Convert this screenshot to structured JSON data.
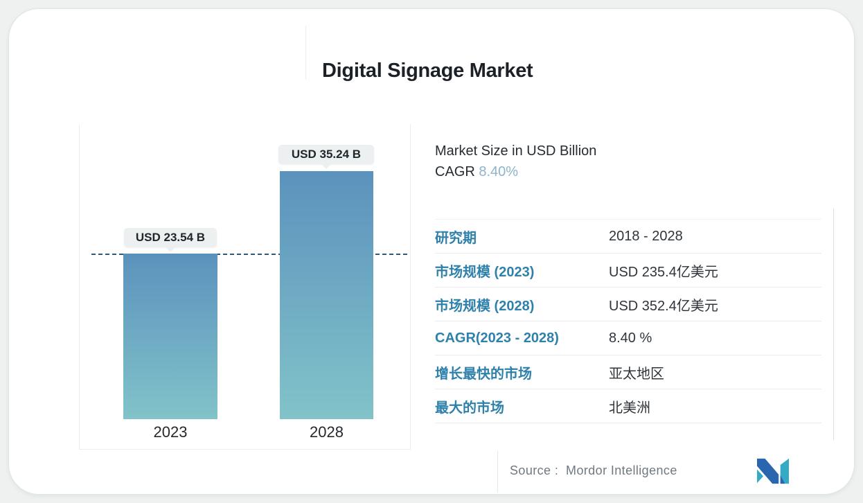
{
  "page_title": "Digital Signage Market",
  "colors": {
    "bar_top": "#5b92bd",
    "bar_bottom": "#82c3c9",
    "dash_line": "#2d5a7b",
    "label_blue": "#2e81ab",
    "cagr_blue": "#8fb3ca",
    "logo_navy": "#2a66ae",
    "logo_teal": "#35aac5"
  },
  "chart_data": {
    "type": "bar",
    "title": "Digital Signage Market",
    "ylabel": "Market Size in USD Billion",
    "categories": [
      "2023",
      "2028"
    ],
    "values": [
      23.54,
      35.24
    ],
    "unit": "USD Billion",
    "bar_value_labels": [
      "USD 23.54 B",
      "USD 35.24 B"
    ],
    "reference_line_value": 23.54,
    "legend": false,
    "gridlines": false,
    "ylim": [
      0,
      42
    ]
  },
  "summary": {
    "line1": "Market Size in USD Billion",
    "cagr_label": "CAGR",
    "cagr_value": "8.40%"
  },
  "stats_table": {
    "rows": [
      {
        "label": "研究期",
        "value": "2018 - 2028"
      },
      {
        "label": "市场规模 (2023)",
        "value": "USD 235.4亿美元"
      },
      {
        "label": "市场规模 (2028)",
        "value": "USD 352.4亿美元"
      },
      {
        "label": "CAGR(2023 - 2028)",
        "value": "8.40 %"
      },
      {
        "label": "增长最快的市场",
        "value": "亚太地区"
      },
      {
        "label": "最大的市场",
        "value": "北美洲"
      }
    ]
  },
  "footer": {
    "source_label": "Source :",
    "source_name": "Mordor Intelligence",
    "logo_name": "mordor-intelligence-logo"
  }
}
